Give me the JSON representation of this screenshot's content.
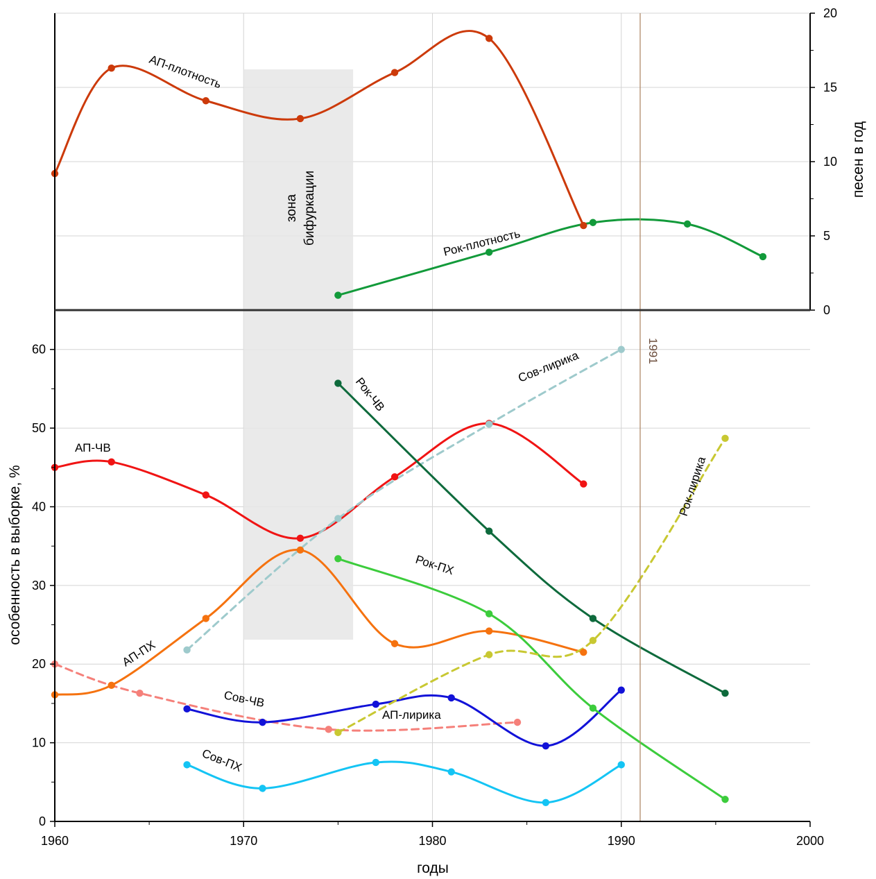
{
  "chart_data": [
    {
      "type": "line",
      "panel": "top",
      "ylabel": "песен в год",
      "yaxis_side": "right",
      "xlim": [
        1960,
        2000
      ],
      "ylim": [
        0,
        20
      ],
      "yticks": [
        0,
        5,
        10,
        15,
        20
      ],
      "series": [
        {
          "name": "АП-плотность",
          "color": "#cc3a0a",
          "style": "solid",
          "points": [
            [
              1960,
              9.2
            ],
            [
              1963,
              16.3
            ],
            [
              1968,
              14.1
            ],
            [
              1973,
              12.9
            ],
            [
              1978,
              16.0
            ],
            [
              1983,
              18.3
            ],
            [
              1988,
              5.7
            ]
          ]
        },
        {
          "name": "Рок-плотность",
          "color": "#129a3a",
          "style": "solid",
          "points": [
            [
              1975,
              1.0
            ],
            [
              1983,
              3.9
            ],
            [
              1988.5,
              5.9
            ],
            [
              1993.5,
              5.8
            ],
            [
              1997.5,
              3.6
            ]
          ]
        }
      ]
    },
    {
      "type": "line",
      "panel": "bottom",
      "xlabel": "годы",
      "ylabel": "особенность в выборке, %",
      "xlim": [
        1960,
        2000
      ],
      "ylim": [
        0,
        65
      ],
      "xticks": [
        1960,
        1970,
        1980,
        1990,
        2000
      ],
      "yticks": [
        0,
        10,
        20,
        30,
        40,
        50,
        60
      ],
      "series": [
        {
          "name": "АП-ЧВ",
          "color": "#f01414",
          "style": "solid",
          "points": [
            [
              1960,
              45.0
            ],
            [
              1963,
              45.7
            ],
            [
              1968,
              41.5
            ],
            [
              1973,
              36.0
            ],
            [
              1978,
              43.8
            ],
            [
              1983,
              50.6
            ],
            [
              1988,
              42.9
            ]
          ]
        },
        {
          "name": "АП-ПХ",
          "color": "#f5720f",
          "style": "solid",
          "points": [
            [
              1960,
              16.1
            ],
            [
              1963,
              17.3
            ],
            [
              1968,
              25.8
            ],
            [
              1973,
              34.5
            ],
            [
              1978,
              22.6
            ],
            [
              1983,
              24.2
            ],
            [
              1988,
              21.5
            ]
          ]
        },
        {
          "name": "АП-лирика",
          "color": "#f5807a",
          "style": "dashed",
          "points": [
            [
              1960,
              20.0
            ],
            [
              1964.5,
              16.3
            ],
            [
              1974.5,
              11.7
            ],
            [
              1984.5,
              12.6
            ]
          ]
        },
        {
          "name": "Сов-лирика",
          "color": "#9ecacc",
          "style": "dashed",
          "points": [
            [
              1967,
              21.8
            ],
            [
              1975,
              38.5
            ],
            [
              1983,
              50.5
            ],
            [
              1990,
              60.0
            ]
          ]
        },
        {
          "name": "Сов-ЧВ",
          "color": "#1212d8",
          "style": "solid",
          "points": [
            [
              1967,
              14.3
            ],
            [
              1971,
              12.6
            ],
            [
              1977,
              14.9
            ],
            [
              1981,
              15.7
            ],
            [
              1986,
              9.6
            ],
            [
              1990,
              16.7
            ]
          ]
        },
        {
          "name": "Сов-ПХ",
          "color": "#14c4f4",
          "style": "solid",
          "points": [
            [
              1967,
              7.2
            ],
            [
              1971,
              4.2
            ],
            [
              1977,
              7.5
            ],
            [
              1981,
              6.3
            ],
            [
              1986,
              2.4
            ],
            [
              1990,
              7.2
            ]
          ]
        },
        {
          "name": "Рок-ЧВ",
          "color": "#0e6a3c",
          "style": "solid",
          "points": [
            [
              1975,
              55.7
            ],
            [
              1983,
              36.9
            ],
            [
              1988.5,
              25.8
            ],
            [
              1995.5,
              16.3
            ]
          ]
        },
        {
          "name": "Рок-ПХ",
          "color": "#3ccc3c",
          "style": "solid",
          "points": [
            [
              1975,
              33.4
            ],
            [
              1983,
              26.4
            ],
            [
              1988.5,
              14.4
            ],
            [
              1995.5,
              2.8
            ]
          ]
        },
        {
          "name": "Рок-лирика",
          "color": "#c8c832",
          "style": "dashed",
          "points": [
            [
              1975,
              11.3
            ],
            [
              1983,
              21.2
            ],
            [
              1988.5,
              23.0
            ],
            [
              1995.5,
              48.7
            ]
          ]
        }
      ]
    }
  ],
  "annotations": {
    "bifurcation_zone_line1": "зона",
    "bifurcation_zone_line2": "бифуркации",
    "bifurcation_zone_range": [
      1970,
      1975.8
    ],
    "vertical_line_year": "1991",
    "vertical_line_color": "#b08a6a",
    "zone_color": "#e6e6e6"
  }
}
